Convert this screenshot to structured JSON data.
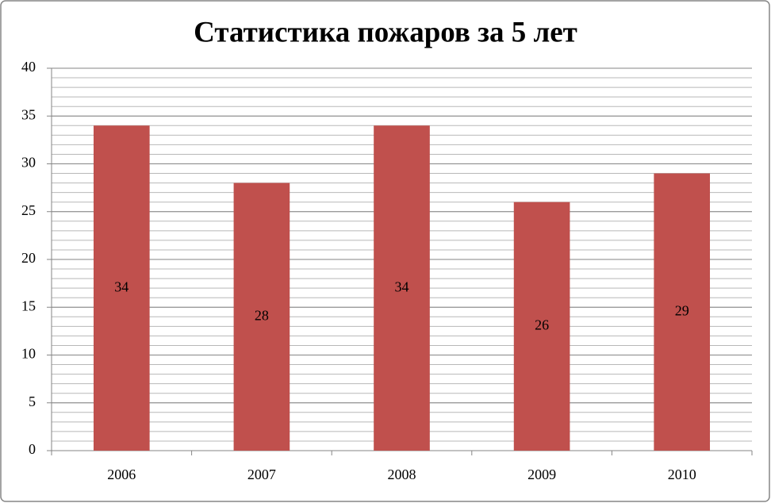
{
  "chart_data": {
    "type": "bar",
    "title": "Статистика пожаров за 5 лет",
    "categories": [
      "2006",
      "2007",
      "2008",
      "2009",
      "2010"
    ],
    "values": [
      34,
      28,
      34,
      26,
      29
    ],
    "color": "#c0504d",
    "ylim": [
      0,
      40
    ],
    "yticks": [
      0,
      5,
      10,
      15,
      20,
      25,
      30,
      35,
      40
    ],
    "yminorticks": [
      0,
      1,
      2,
      3,
      4,
      5,
      6,
      7,
      8,
      9,
      10,
      11,
      12,
      13,
      14,
      15,
      16,
      17,
      18,
      19,
      20,
      21,
      22,
      23,
      24,
      25,
      26,
      27,
      28,
      29,
      30,
      31,
      32,
      33,
      34,
      35,
      36,
      37,
      38,
      39,
      40
    ],
    "grid": true,
    "data_labels": true
  }
}
